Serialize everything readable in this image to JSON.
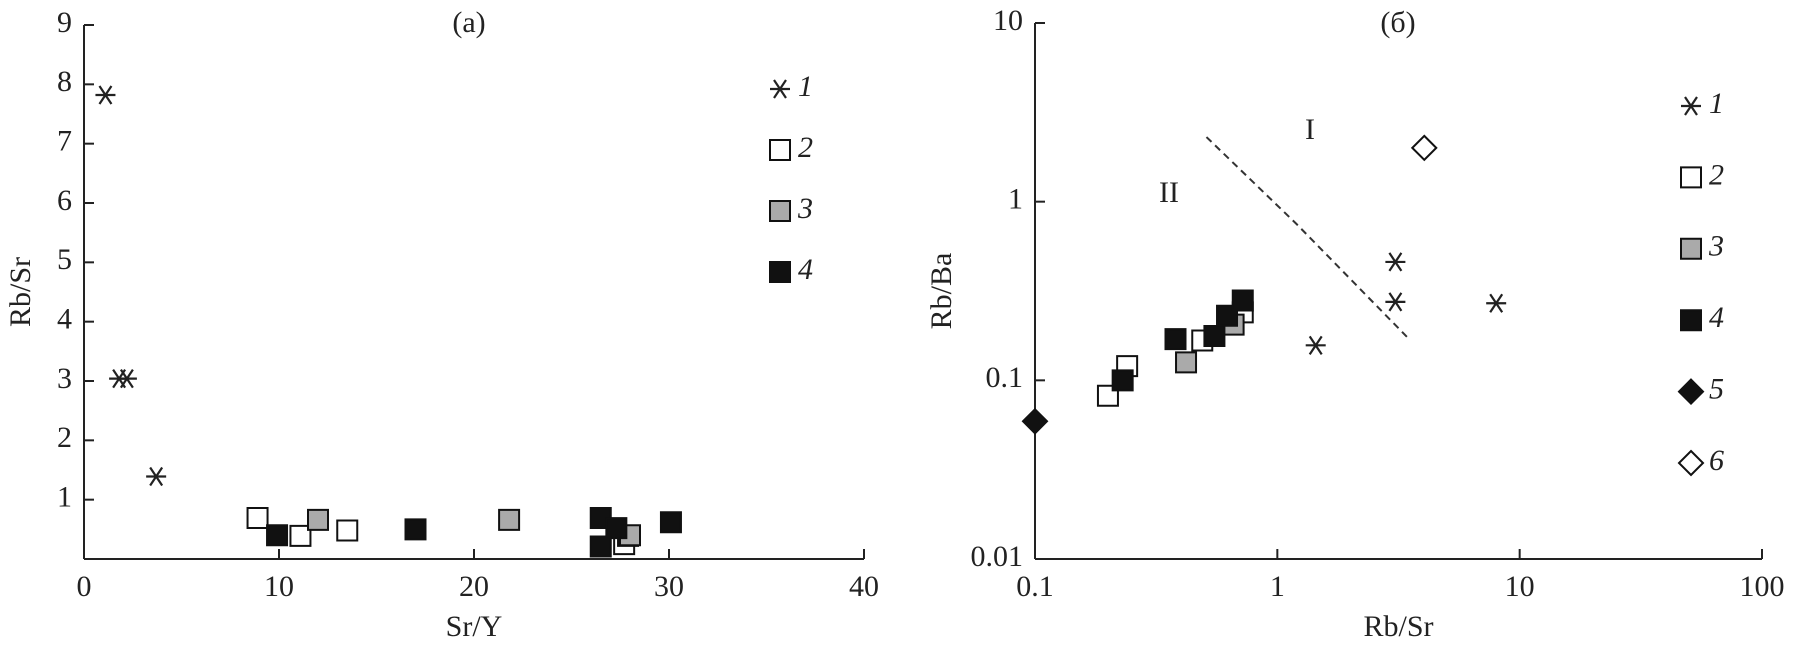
{
  "chart_data": [
    {
      "type": "scatter",
      "title": "(a)",
      "x_label": "Sr/Y",
      "y_label": "Rb/Sr",
      "xlim": [
        0,
        40
      ],
      "xticks": [
        0,
        10,
        20,
        30,
        40
      ],
      "ylim": [
        0,
        9
      ],
      "yticks": [
        1,
        2,
        3,
        4,
        5,
        6,
        7,
        8,
        9
      ],
      "series": [
        {
          "name": "1",
          "marker": "asterisk",
          "color": "#222222",
          "x": [
            1.1,
            1.8,
            2.2,
            3.7
          ],
          "y": [
            7.82,
            3.04,
            3.04,
            1.39
          ]
        },
        {
          "name": "2",
          "marker": "square",
          "color": "#ffffff",
          "x": [
            8.9,
            11.1,
            13.5,
            27.7,
            27.9
          ],
          "y": [
            0.69,
            0.39,
            0.48,
            0.25,
            0.39
          ]
        },
        {
          "name": "3",
          "marker": "square",
          "color": "#aaaaaa",
          "x": [
            12.0,
            21.8,
            28.0
          ],
          "y": [
            0.66,
            0.66,
            0.4
          ]
        },
        {
          "name": "4",
          "marker": "square",
          "color": "#111111",
          "x": [
            9.9,
            17.0,
            26.5,
            27.3,
            26.5,
            30.1
          ],
          "y": [
            0.4,
            0.5,
            0.69,
            0.52,
            0.21,
            0.62
          ]
        }
      ]
    },
    {
      "type": "scatter",
      "title": "(б)",
      "x_label": "Rb/Sr",
      "y_label": "Rb/Ba",
      "log_scale": true,
      "xlim": [
        0.1,
        100
      ],
      "xticks": [
        0.1,
        1,
        10,
        100
      ],
      "ylim": [
        0.01,
        10
      ],
      "yticks": [
        0.01,
        0.1,
        1,
        10
      ],
      "annotations": [
        "I",
        "II"
      ],
      "lines": [
        {
          "style": "dashed",
          "x": [
            0.51,
            1.2,
            3.5
          ],
          "y": [
            2.3,
            0.75,
            0.17
          ]
        }
      ],
      "series": [
        {
          "name": "1",
          "marker": "asterisk",
          "color": "#222222",
          "x": [
            1.44,
            3.07,
            3.07,
            8.0
          ],
          "y": [
            0.157,
            0.46,
            0.275,
            0.27
          ]
        },
        {
          "name": "2",
          "marker": "square",
          "color": "#ffffff",
          "x": [
            0.2,
            0.24,
            0.49,
            0.72
          ],
          "y": [
            0.082,
            0.12,
            0.167,
            0.24
          ]
        },
        {
          "name": "3",
          "marker": "square",
          "color": "#aaaaaa",
          "x": [
            0.42,
            0.66
          ],
          "y": [
            0.126,
            0.205
          ]
        },
        {
          "name": "4",
          "marker": "square",
          "color": "#111111",
          "x": [
            0.23,
            0.38,
            0.55,
            0.62,
            0.72
          ],
          "y": [
            0.1,
            0.17,
            0.177,
            0.23,
            0.28
          ]
        },
        {
          "name": "5",
          "marker": "diamond",
          "color": "#111111",
          "x": [
            0.1
          ],
          "y": [
            0.059
          ]
        },
        {
          "name": "6",
          "marker": "diamond",
          "color": "#ffffff",
          "x": [
            4.04
          ],
          "y": [
            2.0
          ]
        }
      ]
    }
  ]
}
